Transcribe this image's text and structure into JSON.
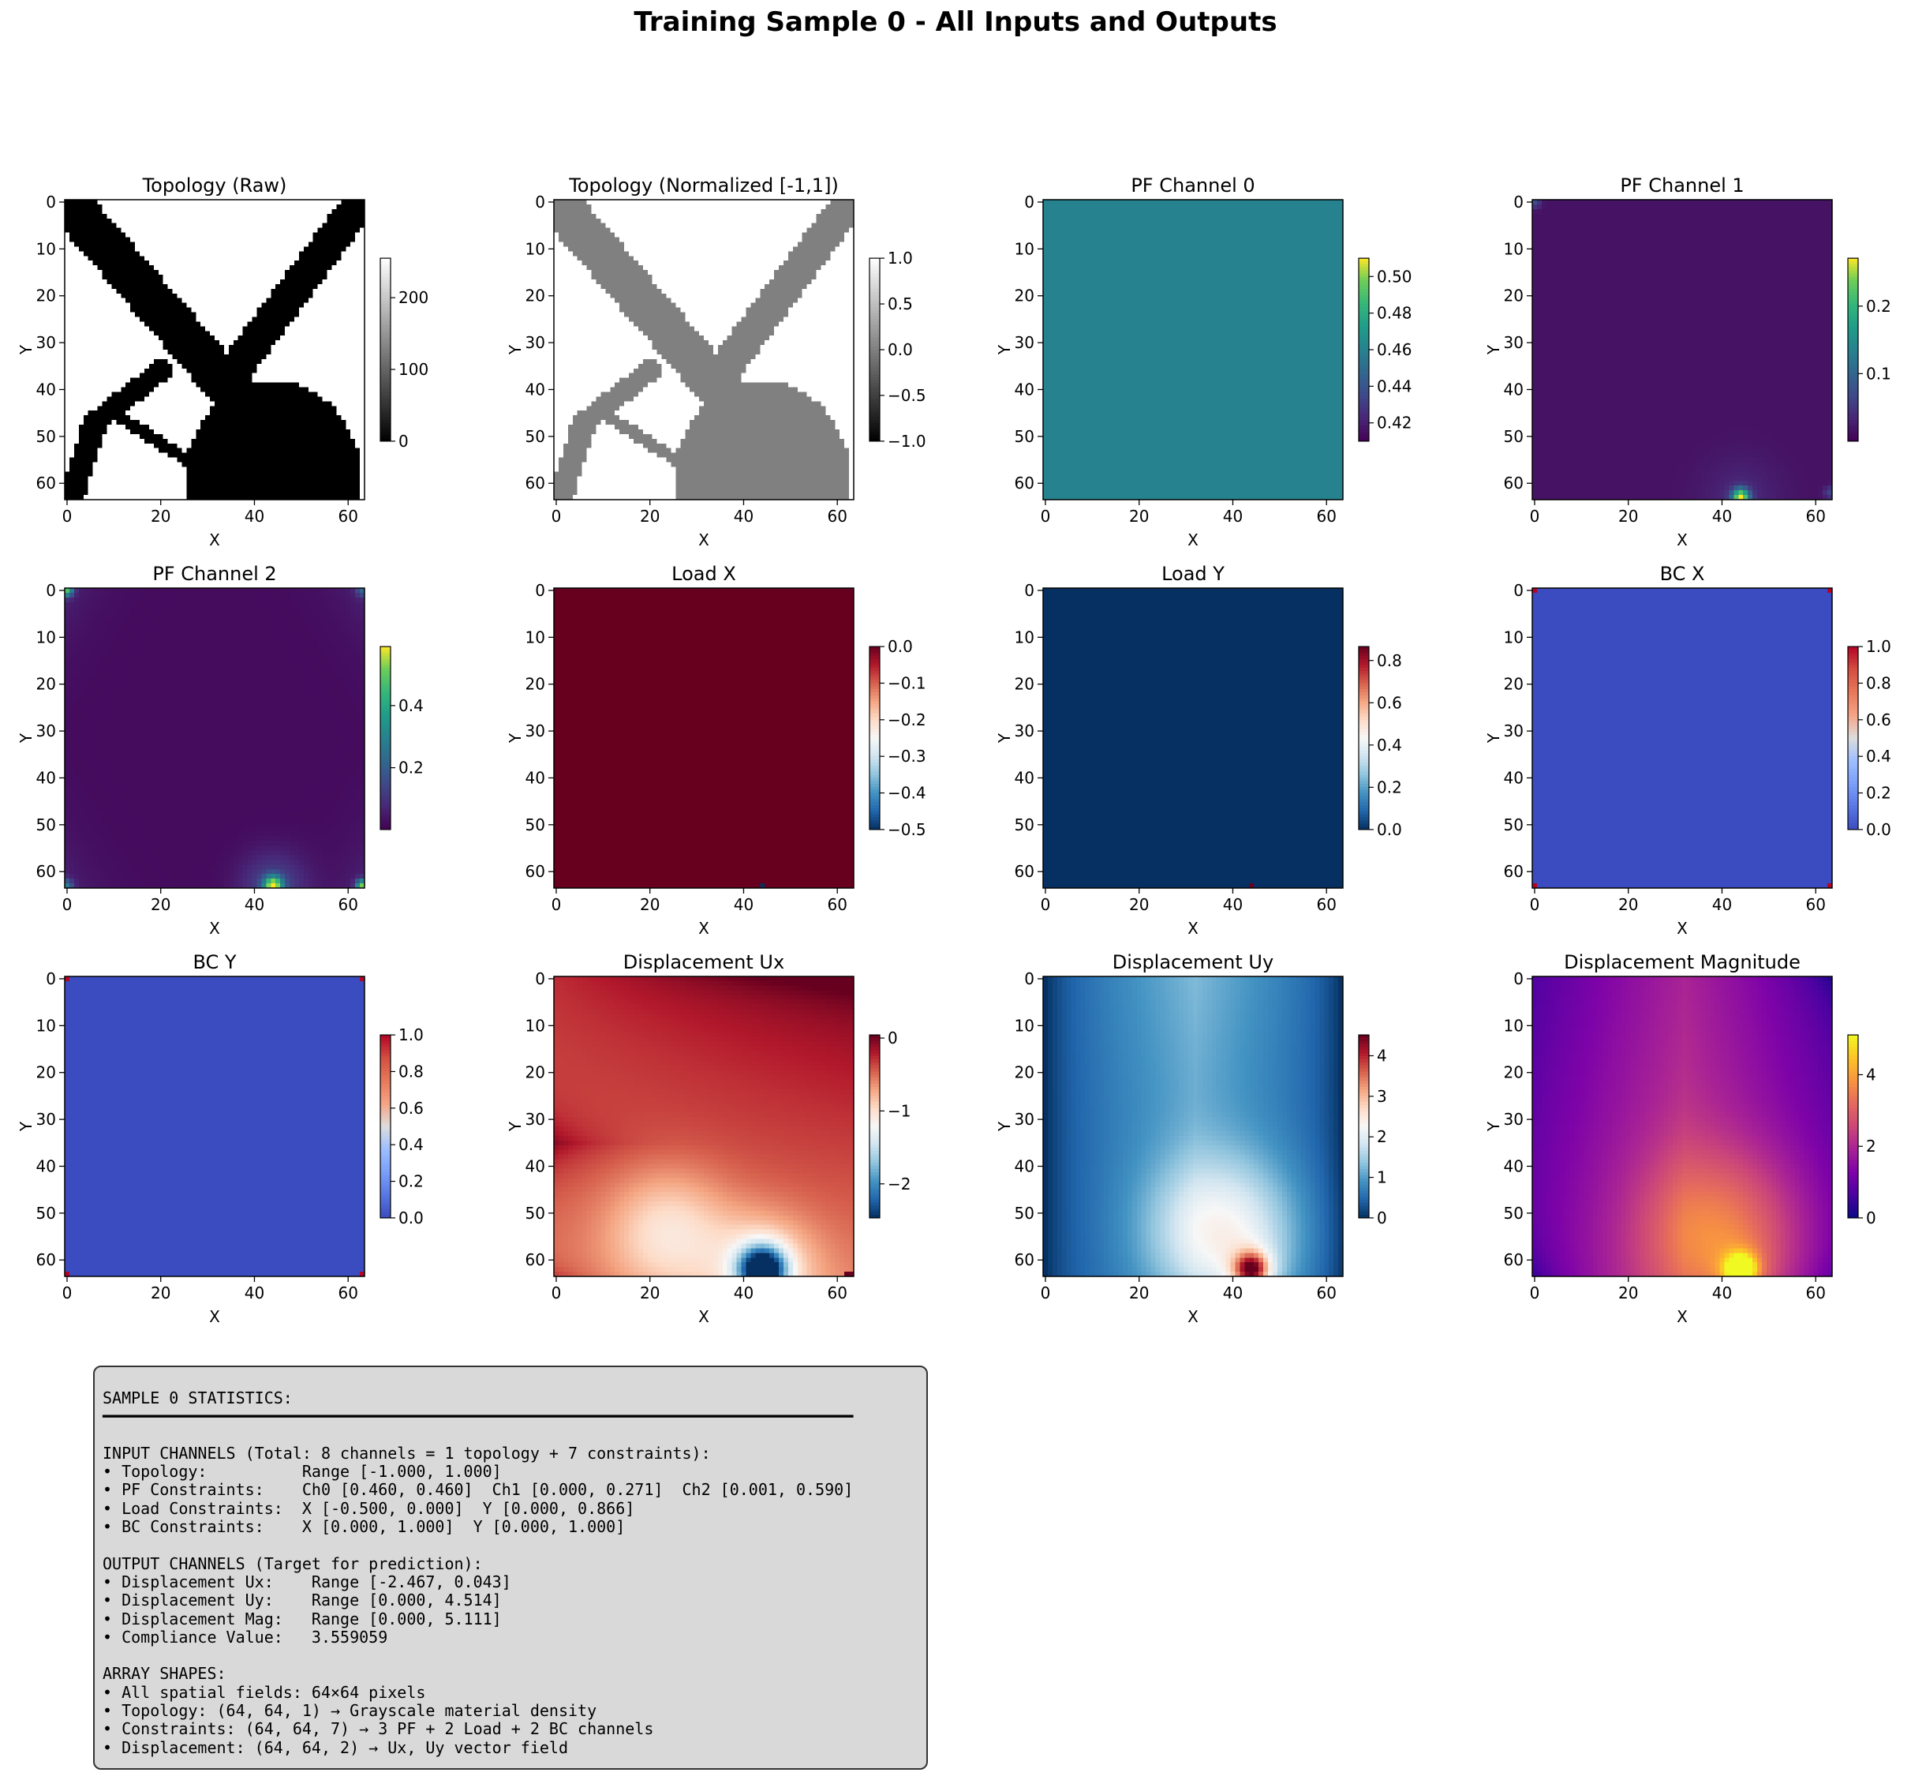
{
  "title": "Training Sample 0 - All Inputs and Outputs",
  "chart_data": [
    {
      "type": "heatmap",
      "title": "Topology (Raw)",
      "xlabel": "X",
      "ylabel": "Y",
      "grid_size": [
        64,
        64
      ],
      "xlim": [
        0,
        63
      ],
      "ylim": [
        63,
        0
      ],
      "xticks": [
        "0",
        "20",
        "40",
        "60"
      ],
      "yticks": [
        "0",
        "10",
        "20",
        "30",
        "40",
        "50",
        "60"
      ],
      "colormap": "gray",
      "field": "topology",
      "clim": [
        0,
        255
      ],
      "cbar_ticks": [
        0,
        100,
        200
      ],
      "cbar_labels": [
        "0",
        "100",
        "200"
      ]
    },
    {
      "type": "heatmap",
      "title": "Topology (Normalized [-1,1])",
      "xlabel": "X",
      "ylabel": "Y",
      "grid_size": [
        64,
        64
      ],
      "xlim": [
        0,
        63
      ],
      "ylim": [
        63,
        0
      ],
      "xticks": [
        "0",
        "20",
        "40",
        "60"
      ],
      "yticks": [
        "0",
        "10",
        "20",
        "30",
        "40",
        "50",
        "60"
      ],
      "colormap": "gray",
      "field": "topology",
      "clim": [
        -1,
        1
      ],
      "cbar_ticks": [
        -1,
        -0.5,
        0,
        0.5,
        1
      ],
      "cbar_labels": [
        "−1.0",
        "−0.5",
        "0.0",
        "0.5",
        "1.0"
      ]
    },
    {
      "type": "heatmap",
      "title": "PF Channel 0",
      "xlabel": "X",
      "ylabel": "Y",
      "grid_size": [
        64,
        64
      ],
      "xlim": [
        0,
        63
      ],
      "ylim": [
        63,
        0
      ],
      "xticks": [
        "0",
        "20",
        "40",
        "60"
      ],
      "yticks": [
        "0",
        "10",
        "20",
        "30",
        "40",
        "50",
        "60"
      ],
      "colormap": "viridis",
      "field": "constant",
      "value": 0.46,
      "clim": [
        0.41,
        0.51
      ],
      "cbar_ticks": [
        0.42,
        0.44,
        0.46,
        0.48,
        0.5
      ],
      "cbar_labels": [
        "0.42",
        "0.44",
        "0.46",
        "0.48",
        "0.50"
      ]
    },
    {
      "type": "heatmap",
      "title": "PF Channel 1",
      "xlabel": "X",
      "ylabel": "Y",
      "grid_size": [
        64,
        64
      ],
      "xlim": [
        0,
        63
      ],
      "ylim": [
        63,
        0
      ],
      "xticks": [
        "0",
        "20",
        "40",
        "60"
      ],
      "yticks": [
        "0",
        "10",
        "20",
        "30",
        "40",
        "50",
        "60"
      ],
      "colormap": "viridis",
      "field": "pf1",
      "clim": [
        0,
        0.271
      ],
      "cbar_ticks": [
        0.1,
        0.2
      ],
      "cbar_labels": [
        "0.1",
        "0.2"
      ]
    },
    {
      "type": "heatmap",
      "title": "PF Channel 2",
      "xlabel": "X",
      "ylabel": "Y",
      "grid_size": [
        64,
        64
      ],
      "xlim": [
        0,
        63
      ],
      "ylim": [
        63,
        0
      ],
      "xticks": [
        "0",
        "20",
        "40",
        "60"
      ],
      "yticks": [
        "0",
        "10",
        "20",
        "30",
        "40",
        "50",
        "60"
      ],
      "colormap": "viridis",
      "field": "pf2",
      "clim": [
        0.001,
        0.59
      ],
      "cbar_ticks": [
        0.2,
        0.4
      ],
      "cbar_labels": [
        "0.2",
        "0.4"
      ]
    },
    {
      "type": "heatmap",
      "title": "Load X",
      "xlabel": "X",
      "ylabel": "Y",
      "grid_size": [
        64,
        64
      ],
      "xlim": [
        0,
        63
      ],
      "ylim": [
        63,
        0
      ],
      "xticks": [
        "0",
        "20",
        "40",
        "60"
      ],
      "yticks": [
        "0",
        "10",
        "20",
        "30",
        "40",
        "50",
        "60"
      ],
      "colormap": "RdBu_r",
      "field": "loadx",
      "clim": [
        -0.5,
        0
      ],
      "cbar_ticks": [
        -0.5,
        -0.4,
        -0.3,
        -0.2,
        -0.1,
        0
      ],
      "cbar_labels": [
        "−0.5",
        "−0.4",
        "−0.3",
        "−0.2",
        "−0.1",
        "0.0"
      ]
    },
    {
      "type": "heatmap",
      "title": "Load Y",
      "xlabel": "X",
      "ylabel": "Y",
      "grid_size": [
        64,
        64
      ],
      "xlim": [
        0,
        63
      ],
      "ylim": [
        63,
        0
      ],
      "xticks": [
        "0",
        "20",
        "40",
        "60"
      ],
      "yticks": [
        "0",
        "10",
        "20",
        "30",
        "40",
        "50",
        "60"
      ],
      "colormap": "RdBu_r",
      "field": "loady",
      "clim": [
        0,
        0.866
      ],
      "cbar_ticks": [
        0,
        0.2,
        0.4,
        0.6,
        0.8
      ],
      "cbar_labels": [
        "0.0",
        "0.2",
        "0.4",
        "0.6",
        "0.8"
      ]
    },
    {
      "type": "heatmap",
      "title": "BC X",
      "xlabel": "X",
      "ylabel": "Y",
      "grid_size": [
        64,
        64
      ],
      "xlim": [
        0,
        63
      ],
      "ylim": [
        63,
        0
      ],
      "xticks": [
        "0",
        "20",
        "40",
        "60"
      ],
      "yticks": [
        "0",
        "10",
        "20",
        "30",
        "40",
        "50",
        "60"
      ],
      "colormap": "coolwarm",
      "field": "bc",
      "clim": [
        0,
        1
      ],
      "cbar_ticks": [
        0,
        0.2,
        0.4,
        0.6,
        0.8,
        1
      ],
      "cbar_labels": [
        "0.0",
        "0.2",
        "0.4",
        "0.6",
        "0.8",
        "1.0"
      ]
    },
    {
      "type": "heatmap",
      "title": "BC Y",
      "xlabel": "X",
      "ylabel": "Y",
      "grid_size": [
        64,
        64
      ],
      "xlim": [
        0,
        63
      ],
      "ylim": [
        63,
        0
      ],
      "xticks": [
        "0",
        "20",
        "40",
        "60"
      ],
      "yticks": [
        "0",
        "10",
        "20",
        "30",
        "40",
        "50",
        "60"
      ],
      "colormap": "coolwarm",
      "field": "bc",
      "clim": [
        0,
        1
      ],
      "cbar_ticks": [
        0,
        0.2,
        0.4,
        0.6,
        0.8,
        1
      ],
      "cbar_labels": [
        "0.0",
        "0.2",
        "0.4",
        "0.6",
        "0.8",
        "1.0"
      ]
    },
    {
      "type": "heatmap",
      "title": "Displacement Ux",
      "xlabel": "X",
      "ylabel": "Y",
      "grid_size": [
        64,
        64
      ],
      "xlim": [
        0,
        63
      ],
      "ylim": [
        63,
        0
      ],
      "xticks": [
        "0",
        "20",
        "40",
        "60"
      ],
      "yticks": [
        "0",
        "10",
        "20",
        "30",
        "40",
        "50",
        "60"
      ],
      "colormap": "RdBu_r",
      "field": "ux",
      "clim": [
        -2.467,
        0.043
      ],
      "cbar_ticks": [
        -2,
        -1,
        0
      ],
      "cbar_labels": [
        "−2",
        "−1",
        "0"
      ]
    },
    {
      "type": "heatmap",
      "title": "Displacement Uy",
      "xlabel": "X",
      "ylabel": "Y",
      "grid_size": [
        64,
        64
      ],
      "xlim": [
        0,
        63
      ],
      "ylim": [
        63,
        0
      ],
      "xticks": [
        "0",
        "20",
        "40",
        "60"
      ],
      "yticks": [
        "0",
        "10",
        "20",
        "30",
        "40",
        "50",
        "60"
      ],
      "colormap": "RdBu_r",
      "field": "uy",
      "clim": [
        0,
        4.514
      ],
      "cbar_ticks": [
        0,
        1,
        2,
        3,
        4
      ],
      "cbar_labels": [
        "0",
        "1",
        "2",
        "3",
        "4"
      ]
    },
    {
      "type": "heatmap",
      "title": "Displacement Magnitude",
      "xlabel": "X",
      "ylabel": "Y",
      "grid_size": [
        64,
        64
      ],
      "xlim": [
        0,
        63
      ],
      "ylim": [
        63,
        0
      ],
      "xticks": [
        "0",
        "20",
        "40",
        "60"
      ],
      "yticks": [
        "0",
        "10",
        "20",
        "30",
        "40",
        "50",
        "60"
      ],
      "colormap": "plasma",
      "field": "mag",
      "clim": [
        0,
        5.111
      ],
      "cbar_ticks": [
        0,
        2,
        4
      ],
      "cbar_labels": [
        "0",
        "2",
        "4"
      ]
    }
  ],
  "stats": {
    "heading": "SAMPLE 0 STATISTICS:",
    "rule": "━━━━━━━━━━━━━━━━━━━━━━━━━━━━━━━━━━━━━━━━━━━━━━━━━━━━━━━━━━━━━━━━━━━━━━━━━━━━━━━",
    "lines": [
      "",
      "INPUT CHANNELS (Total: 8 channels = 1 topology + 7 constraints):",
      "• Topology:          Range [-1.000, 1.000]",
      "• PF Constraints:    Ch0 [0.460, 0.460]  Ch1 [0.000, 0.271]  Ch2 [0.001, 0.590]",
      "• Load Constraints:  X [-0.500, 0.000]  Y [0.000, 0.866]",
      "• BC Constraints:    X [0.000, 1.000]  Y [0.000, 1.000]",
      "",
      "OUTPUT CHANNELS (Target for prediction):",
      "• Displacement Ux:    Range [-2.467, 0.043]",
      "• Displacement Uy:    Range [0.000, 4.514]",
      "• Displacement Mag:   Range [0.000, 5.111]",
      "• Compliance Value:   3.559059",
      "",
      "ARRAY SHAPES:",
      "• All spatial fields: 64×64 pixels",
      "• Topology: (64, 64, 1) → Grayscale material density",
      "• Constraints: (64, 64, 7) → 3 PF + 2 Load + 2 BC channels",
      "• Displacement: (64, 64, 2) → Ux, Uy vector field"
    ]
  }
}
